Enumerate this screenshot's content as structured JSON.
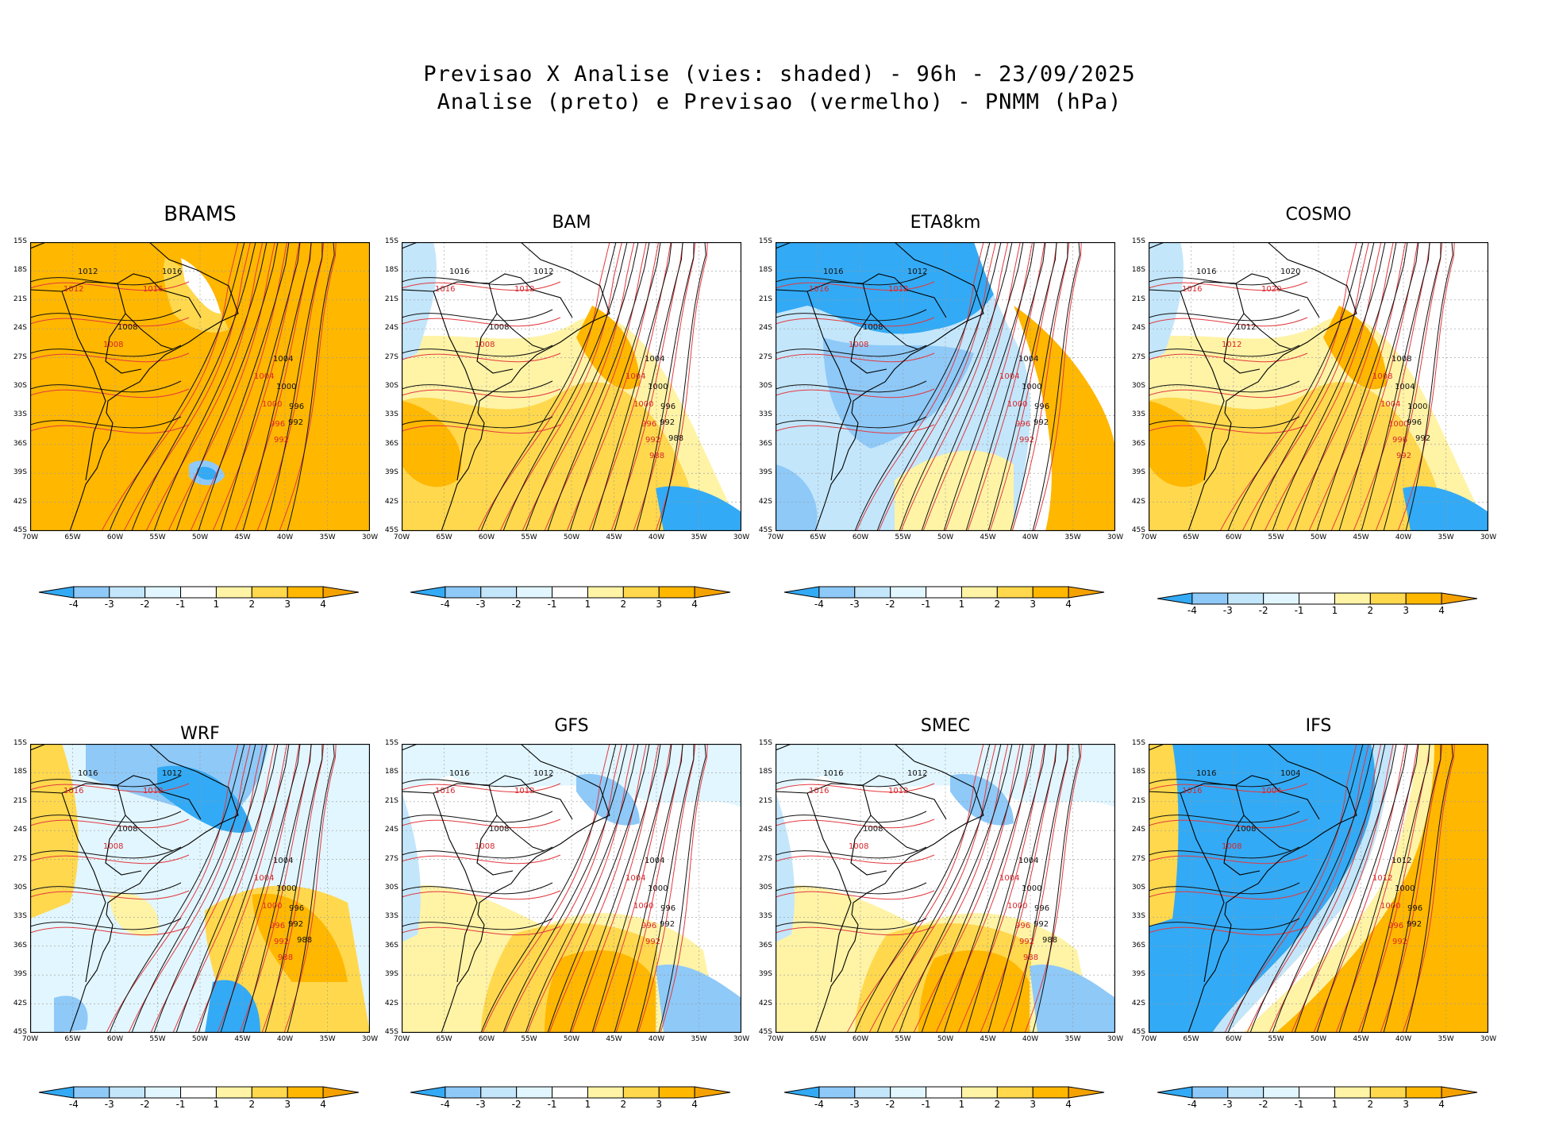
{
  "header": {
    "line1": "Previsao X Analise (vies: shaded) - 96h - 23/09/2025",
    "line2": "Analise (preto) e Previsao (vermelho) - PNMM (hPa)"
  },
  "lat_labels": [
    "15S",
    "18S",
    "21S",
    "24S",
    "27S",
    "30S",
    "33S",
    "36S",
    "39S",
    "42S",
    "45S"
  ],
  "lon_labels": [
    "70W",
    "65W",
    "60W",
    "55W",
    "50W",
    "45W",
    "40W",
    "35W",
    "30W"
  ],
  "colorbar": {
    "labels": [
      "-4",
      "-3",
      "-2",
      "-1",
      "1",
      "2",
      "3",
      "4"
    ],
    "colors": [
      "#33aaf5",
      "#8ec9f8",
      "#c3e6fb",
      "#e2f6ff",
      "#ffffff",
      "#fff3a6",
      "#ffd84d",
      "#ffb700",
      "#f5a200"
    ]
  },
  "panels": [
    {
      "name": "BRAMS",
      "regime": "warm",
      "isobars": [
        "1012",
        "1016",
        "1008",
        "1004",
        "1000",
        "996",
        "992"
      ]
    },
    {
      "name": "BAM",
      "regime": "mixed-warm",
      "isobars": [
        "1016",
        "1012",
        "1008",
        "1004",
        "1000",
        "996",
        "992",
        "988"
      ]
    },
    {
      "name": "ETA8km",
      "regime": "cold",
      "isobars": [
        "1016",
        "1012",
        "1008",
        "1004",
        "1000",
        "996",
        "992"
      ]
    },
    {
      "name": "COSMO",
      "regime": "mixed-warm",
      "isobars": [
        "1016",
        "1020",
        "1012",
        "1008",
        "1004",
        "1000",
        "996",
        "992"
      ]
    },
    {
      "name": "WRF",
      "regime": "mixed-cold",
      "isobars": [
        "1016",
        "1012",
        "1008",
        "1004",
        "1000",
        "996",
        "992",
        "988"
      ]
    },
    {
      "name": "GFS",
      "regime": "mixed",
      "isobars": [
        "1016",
        "1012",
        "1008",
        "1004",
        "1000",
        "996",
        "992"
      ]
    },
    {
      "name": "SMEC",
      "regime": "mixed",
      "isobars": [
        "1016",
        "1012",
        "1008",
        "1004",
        "1000",
        "996",
        "992",
        "988"
      ]
    },
    {
      "name": "IFS",
      "regime": "split",
      "isobars": [
        "1016",
        "1004",
        "1008",
        "1012",
        "1000",
        "996",
        "992"
      ]
    }
  ]
}
